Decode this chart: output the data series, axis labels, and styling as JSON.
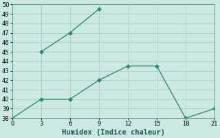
{
  "xlabel": "Humidex (Indice chaleur)",
  "line1_x": [
    3,
    6,
    9
  ],
  "line1_y": [
    45,
    47,
    49.5
  ],
  "line2_x": [
    0,
    3,
    6,
    9,
    12,
    15,
    18,
    21
  ],
  "line2_y": [
    38,
    40,
    40,
    42,
    43.5,
    43.5,
    38,
    39
  ],
  "line_color": "#2e8b74",
  "marker": "D",
  "marker_size": 3,
  "linewidth": 1.0,
  "bg_color": "#cce8e4",
  "grid_color": "#aacfcb",
  "ylim": [
    38,
    50
  ],
  "xlim": [
    0,
    21
  ],
  "yticks": [
    38,
    39,
    40,
    41,
    42,
    43,
    44,
    45,
    46,
    47,
    48,
    49,
    50
  ],
  "xticks": [
    0,
    3,
    6,
    9,
    12,
    15,
    18,
    21
  ],
  "tick_fontsize": 6,
  "label_fontsize": 7.5
}
